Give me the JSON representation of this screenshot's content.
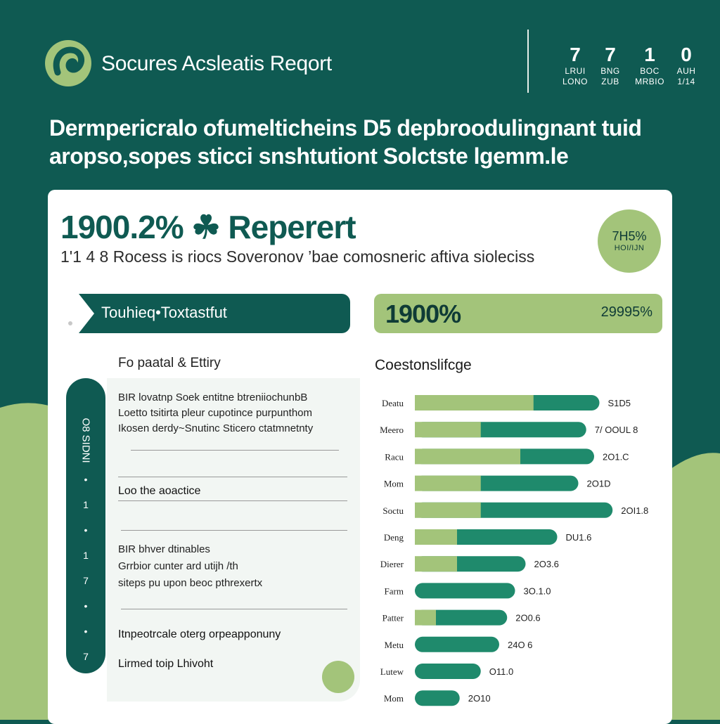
{
  "header": {
    "app_title": "Socures Acsleatis Reqort",
    "stats": [
      {
        "num": "7",
        "l1": "LRUI",
        "l2": "LONO"
      },
      {
        "num": "7",
        "l1": "BNG",
        "l2": "ZUB"
      },
      {
        "num": "1",
        "l1": "BOC",
        "l2": "MRBIO"
      },
      {
        "num": "0",
        "l1": "AUH",
        "l2": "1/14"
      }
    ]
  },
  "headline": {
    "line1": "Dermpericralo ofumelticheins D5 depbroodulingnant tuid",
    "line2": "aropso,sopes sticci snshtutiont Solctste lgemm.le"
  },
  "card": {
    "big_title": "1900.2% ☘ Reperert",
    "sub_title": "1'1 4 8 Rocess is riocs Soveronov ’bae comosneric aftiva sioleciss",
    "badge": {
      "value": "7H5%",
      "label": "HOI/IJN"
    },
    "tag_left": "Touhieq•Toxtastfut",
    "tag_right": {
      "left": "1900%",
      "right": "29995%"
    }
  },
  "left": {
    "title": "Fo paatal & Ettiry",
    "timeline_label": "O8 SIDNI",
    "markers": [
      "•",
      "1",
      "•",
      "1",
      "7",
      "•",
      "•",
      "7"
    ],
    "para1": [
      "BIR lovatnp Soek entitne btreniiochunbB",
      "Loetto tsitirta pleur cupotince purpunthom",
      "Ikosen derdy~Snutinc Sticero ctatmnetnty"
    ],
    "item1": "Loo the aoactice",
    "para2": [
      "BIR bhver dtinables",
      "Grrbior cunter ard utijh /th",
      "siteps pu upon beoc pthrexertx"
    ],
    "item2": "Itnpeotrcale oterg orpeapponuny",
    "item3": "Lirmed toip Lhivoht"
  },
  "chart_title": "Coestonslifcge",
  "colors": {
    "dark": "#0f5a52",
    "medium": "#1f8a6c",
    "light": "#a3c47a"
  },
  "chart_data": {
    "type": "bar",
    "title": "Coestonslifcge",
    "categories": [
      "Deatu",
      "Meero",
      "Racu",
      "Mom",
      "Soctu",
      "Deng",
      "Dierer",
      "Farm",
      "Patter",
      "Metu",
      "Lutew",
      "Mom"
    ],
    "series": [
      {
        "values": [
          45,
          25,
          40,
          25,
          25,
          16,
          16,
          0,
          8,
          0,
          0,
          0
        ]
      },
      {
        "values": [
          25,
          40,
          28,
          37,
          50,
          38,
          26,
          38,
          27,
          32,
          25,
          17
        ]
      }
    ],
    "value_labels": [
      "S1D5",
      "7/ OOUL 8",
      "2O1.C",
      "2O1D",
      "2OI1.8",
      "DU1.6",
      "2O3.6",
      "3O.1.0",
      "2O0.6",
      "24O 6",
      "O11.0",
      "2O10"
    ],
    "orientation": "horizontal",
    "xlim": [
      0,
      80
    ],
    "grid": false
  }
}
